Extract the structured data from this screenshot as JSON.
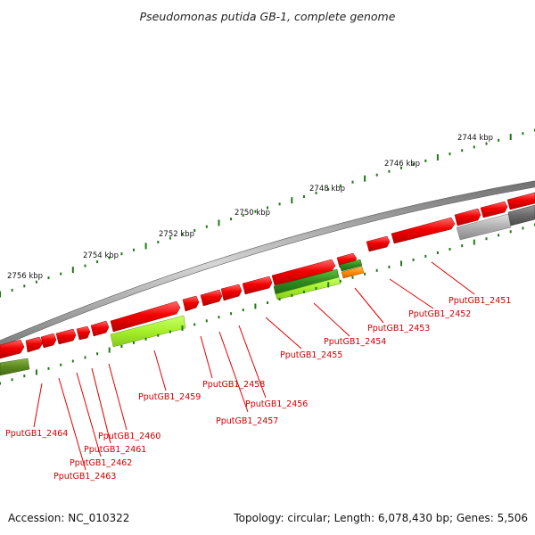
{
  "title": "Pseudomonas putida GB-1, complete genome",
  "footer": {
    "accession": "Accession: NC_010322",
    "summary": "Topology: circular; Length: 6,078,430 bp; Genes: 5,506"
  },
  "colors": {
    "backbone": "#8a8a8a",
    "forward_gene": "#ee0000",
    "reverse_green_dark": "#2f8a1e",
    "reverse_green_light": "#a6ef2a",
    "olive": "#5c8a1f",
    "orange": "#ff8a00",
    "gray_gene": "#9a9a9a",
    "tick": "#1f7a12",
    "label": "#cc0000"
  },
  "scale_labels": [
    {
      "id": "kbp-2744",
      "text": "2744 kbp"
    },
    {
      "id": "kbp-2746",
      "text": "2746 kbp"
    },
    {
      "id": "kbp-2748",
      "text": "2748 kbp"
    },
    {
      "id": "kbp-2750",
      "text": "2750 kbp"
    },
    {
      "id": "kbp-2752",
      "text": "2752 kbp"
    },
    {
      "id": "kbp-2754",
      "text": "2754 kbp"
    },
    {
      "id": "kbp-2756",
      "text": "2756 kbp"
    }
  ],
  "genes": [
    {
      "id": "gene-2451",
      "label": "PputGB1_2451"
    },
    {
      "id": "gene-2452",
      "label": "PputGB1_2452"
    },
    {
      "id": "gene-2453",
      "label": "PputGB1_2453"
    },
    {
      "id": "gene-2454",
      "label": "PputGB1_2454"
    },
    {
      "id": "gene-2455",
      "label": "PputGB1_2455"
    },
    {
      "id": "gene-2456",
      "label": "PputGB1_2456"
    },
    {
      "id": "gene-2457",
      "label": "PputGB1_2457"
    },
    {
      "id": "gene-2458",
      "label": "PputGB1_2458"
    },
    {
      "id": "gene-2459",
      "label": "PputGB1_2459"
    },
    {
      "id": "gene-2460",
      "label": "PputGB1_2460"
    },
    {
      "id": "gene-2461",
      "label": "PputGB1_2461"
    },
    {
      "id": "gene-2462",
      "label": "PputGB1_2462"
    },
    {
      "id": "gene-2463",
      "label": "PputGB1_2463"
    },
    {
      "id": "gene-2464",
      "label": "PputGB1_2464"
    }
  ]
}
